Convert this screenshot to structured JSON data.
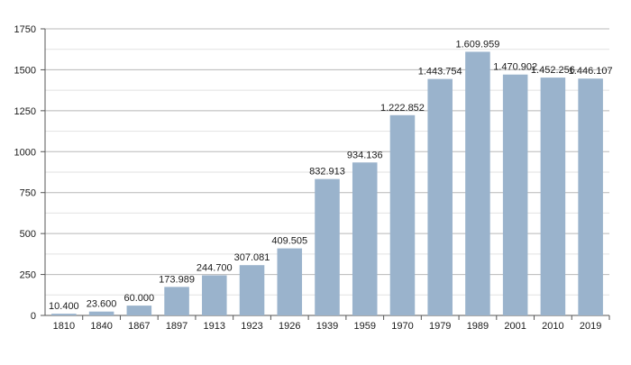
{
  "chart_data": {
    "type": "bar",
    "categories": [
      "1810",
      "1840",
      "1867",
      "1897",
      "1913",
      "1923",
      "1926",
      "1939",
      "1959",
      "1970",
      "1979",
      "1989",
      "2001",
      "2010",
      "2019"
    ],
    "values": [
      10.4,
      23.6,
      60.0,
      173.989,
      244.7,
      307.081,
      409.505,
      832.913,
      934.136,
      1222.852,
      1443.754,
      1609.959,
      1470.902,
      1452.256,
      1446.107
    ],
    "data_labels": [
      "10.400",
      "23.600",
      "60.000",
      "173.989",
      "244.700",
      "307.081",
      "409.505",
      "832.913",
      "934.136",
      "1.222.852",
      "1.443.754",
      "1.609.959",
      "1.470.902",
      "1.452.256",
      "1.446.107"
    ],
    "yticks": [
      0,
      250,
      500,
      750,
      1000,
      1250,
      1500,
      1750
    ],
    "ytick_labels": [
      "0",
      "250",
      "500",
      "750",
      "1000",
      "1250",
      "1500",
      "1750"
    ],
    "ylim": [
      0,
      1750
    ],
    "grid": true,
    "bar_color": "#9ab3cc",
    "title": "",
    "xlabel": "",
    "ylabel": ""
  }
}
